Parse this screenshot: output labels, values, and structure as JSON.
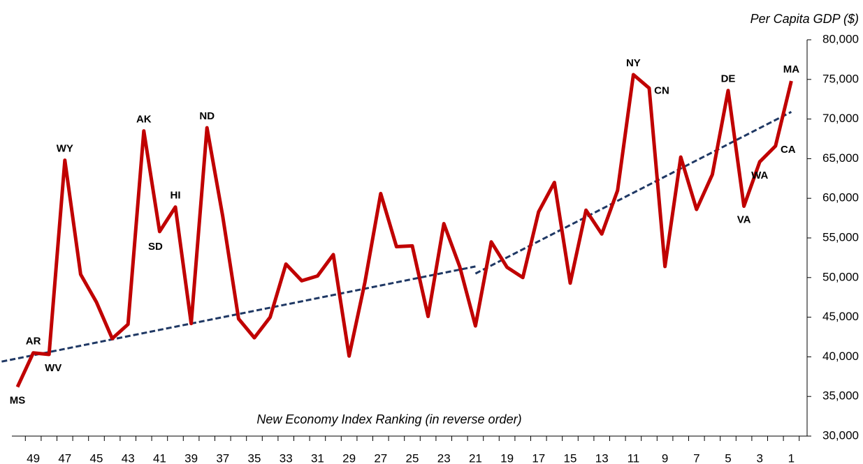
{
  "chart_data": {
    "type": "line",
    "y_axis_title": "Per Capita GDP ($)",
    "x_axis_title": "New Economy Index Ranking (in reverse order)",
    "x": [
      50,
      49,
      48,
      47,
      46,
      45,
      44,
      43,
      42,
      41,
      40,
      39,
      38,
      37,
      36,
      35,
      34,
      33,
      32,
      31,
      30,
      29,
      28,
      27,
      26,
      25,
      24,
      23,
      22,
      21,
      20,
      19,
      18,
      17,
      16,
      15,
      14,
      13,
      12,
      11,
      10,
      9,
      8,
      7,
      6,
      5,
      4,
      3,
      2,
      1
    ],
    "series": [
      {
        "color": "#c00000",
        "values": [
          36200,
          40500,
          40300,
          64800,
          50400,
          46900,
          42300,
          44100,
          68500,
          55800,
          58900,
          44200,
          68900,
          57700,
          44800,
          42400,
          45000,
          51700,
          49600,
          50200,
          52900,
          40100,
          49400,
          60600,
          53900,
          54000,
          45100,
          56800,
          51400,
          43900,
          54500,
          51300,
          50000,
          58300,
          62000,
          49300,
          58500,
          55500,
          61000,
          75600,
          73900,
          51400,
          65200,
          58600,
          63000,
          73600,
          59000,
          64600,
          66600,
          74800
        ],
        "point_labels": [
          "MS",
          "AR",
          "WV",
          "WY",
          null,
          null,
          null,
          null,
          "AK",
          "SD",
          "HI",
          null,
          "ND",
          null,
          null,
          null,
          null,
          null,
          null,
          null,
          null,
          null,
          null,
          null,
          null,
          null,
          null,
          null,
          null,
          null,
          null,
          null,
          null,
          null,
          null,
          null,
          null,
          null,
          null,
          "NY",
          "CN",
          null,
          null,
          null,
          null,
          "DE",
          "VA",
          "WA",
          "CA",
          "MA"
        ]
      }
    ],
    "trend_lines": [
      {
        "color": "#1f3864",
        "x": [
          51,
          21
        ],
        "values": [
          39400,
          51400
        ]
      },
      {
        "color": "#1f3864",
        "x": [
          21,
          1
        ],
        "values": [
          50500,
          70900
        ]
      }
    ],
    "xlim": [
      51,
      0
    ],
    "xticks": [
      49,
      47,
      45,
      43,
      41,
      39,
      37,
      35,
      33,
      31,
      29,
      27,
      25,
      23,
      21,
      19,
      17,
      15,
      13,
      11,
      9,
      7,
      5,
      3,
      1
    ],
    "ylim": [
      30000,
      80000
    ],
    "yticks": [
      {
        "value": 30000,
        "label": "30,000"
      },
      {
        "value": 35000,
        "label": "35,000"
      },
      {
        "value": 40000,
        "label": "40,000"
      },
      {
        "value": 45000,
        "label": "45,000"
      },
      {
        "value": 50000,
        "label": "50,000"
      },
      {
        "value": 55000,
        "label": "55,000"
      },
      {
        "value": 60000,
        "label": "60,000"
      },
      {
        "value": 65000,
        "label": "65,000"
      },
      {
        "value": 70000,
        "label": "70,000"
      },
      {
        "value": 75000,
        "label": "75,000"
      },
      {
        "value": 80000,
        "label": "80,000"
      }
    ]
  }
}
